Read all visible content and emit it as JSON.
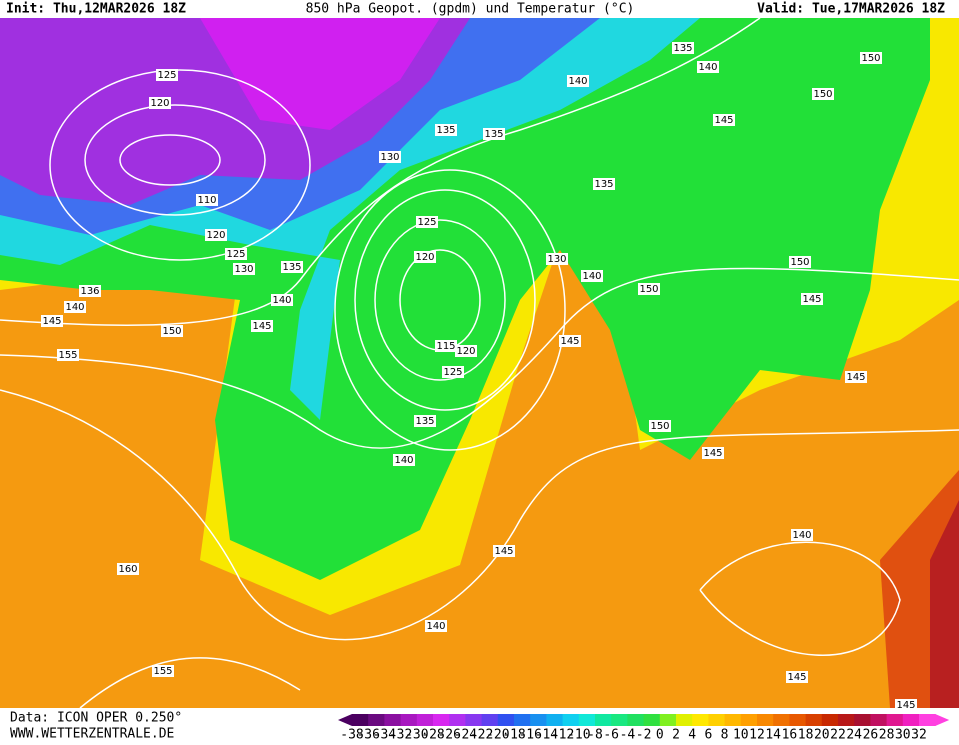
{
  "header": {
    "init": "Init: Thu,12MAR2026 18Z",
    "title": "850 hPa Geopot. (gpdm) und Temperatur (°C)",
    "valid": "Valid: Tue,17MAR2026 18Z"
  },
  "footer": {
    "data": "Data: ICON OPER 0.250°",
    "site": "WWW.WETTERZENTRALE.DE"
  },
  "contour_labels": [
    125,
    120,
    110,
    120,
    125,
    130,
    136,
    140,
    145,
    150,
    155,
    140,
    145,
    135,
    130,
    135,
    135,
    140,
    135,
    140,
    150,
    150,
    145,
    135,
    125,
    120,
    130,
    140,
    150,
    150,
    145,
    145,
    115,
    120,
    125,
    135,
    140,
    150,
    145,
    145,
    145,
    140,
    160,
    140,
    155,
    145,
    145
  ],
  "colorbar": {
    "labels": [
      -38,
      -36,
      -34,
      -32,
      -30,
      -28,
      -26,
      -24,
      -22,
      -20,
      -18,
      -16,
      -14,
      -12,
      -10,
      -8,
      -6,
      -4,
      -2,
      0,
      2,
      4,
      6,
      8,
      10,
      12,
      14,
      16,
      18,
      20,
      22,
      24,
      26,
      28,
      30,
      32
    ],
    "colors": [
      "#4b0060",
      "#6a0a80",
      "#8a10a0",
      "#a818c0",
      "#c020d8",
      "#d828f0",
      "#b030f0",
      "#8838f0",
      "#6040f0",
      "#3050f0",
      "#2070f0",
      "#1890f0",
      "#10b0f0",
      "#10d0f0",
      "#10e8d8",
      "#10e8a0",
      "#18e880",
      "#20e060",
      "#30e040",
      "#80f020",
      "#e0f000",
      "#ffe800",
      "#ffd000",
      "#ffb800",
      "#ffa000",
      "#f88800",
      "#f07000",
      "#e85800",
      "#d84000",
      "#c82800",
      "#b81818",
      "#a81030",
      "#c01060",
      "#e01890",
      "#f020c0",
      "#ff40e0"
    ]
  }
}
